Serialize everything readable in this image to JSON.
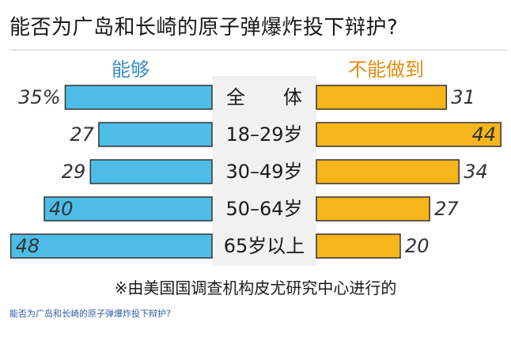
{
  "title": "能否为广岛和长崎的原子弹爆炸投下辩护?",
  "note": "※由美国国调查机构皮尤研究中心进行的",
  "caption": "能否为广岛和长崎的原子弹爆炸投下辩护?",
  "colors": {
    "yes": "#4dbde8",
    "no": "#f7b51c",
    "yes_label": "#3a8fc4",
    "no_label": "#e08e14",
    "bar_border": "#333333",
    "center_band": "#f1f1f1"
  },
  "chart_data": {
    "type": "bar",
    "orientation": "horizontal-diverging",
    "categories": [
      "全　　体",
      "18–29岁",
      "30–49岁",
      "50–64岁",
      "65岁以上"
    ],
    "series": [
      {
        "name": "能够",
        "values": [
          35,
          27,
          29,
          40,
          48
        ],
        "value_labels": [
          "35%",
          "27",
          "29",
          "40",
          "48"
        ]
      },
      {
        "name": "不能做到",
        "values": [
          31,
          44,
          34,
          27,
          20
        ],
        "value_labels": [
          "31",
          "44",
          "34",
          "27",
          "20"
        ]
      }
    ]
  }
}
